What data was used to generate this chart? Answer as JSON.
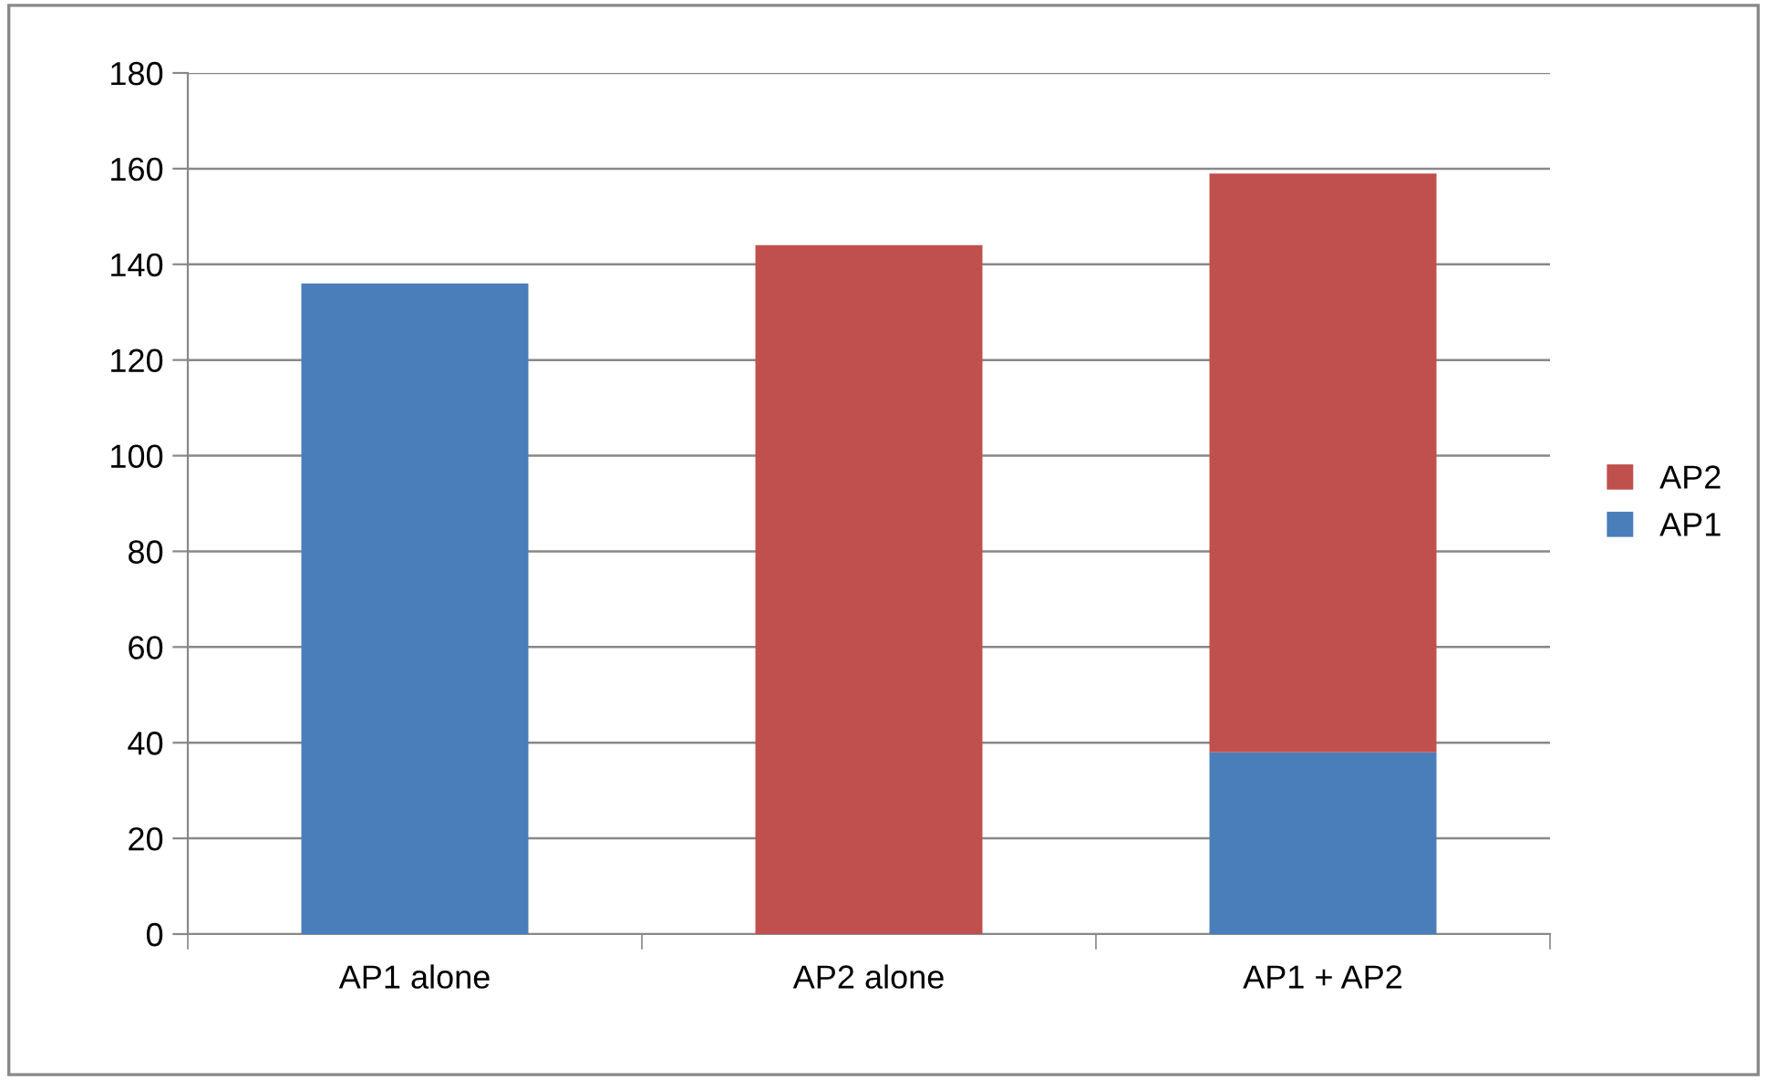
{
  "chart_data": {
    "type": "bar",
    "stacked": true,
    "categories": [
      "AP1 alone",
      "AP2 alone",
      "AP1 + AP2"
    ],
    "series": [
      {
        "name": "AP1",
        "color": "#4a7ebb",
        "values": [
          136,
          null,
          38
        ]
      },
      {
        "name": "AP2",
        "color": "#c0504d",
        "values": [
          null,
          144,
          121
        ]
      }
    ],
    "ylim": [
      0,
      180
    ],
    "yticks": [
      0,
      20,
      40,
      60,
      80,
      100,
      120,
      140,
      160,
      180
    ],
    "grid": "y",
    "legend": "right"
  }
}
